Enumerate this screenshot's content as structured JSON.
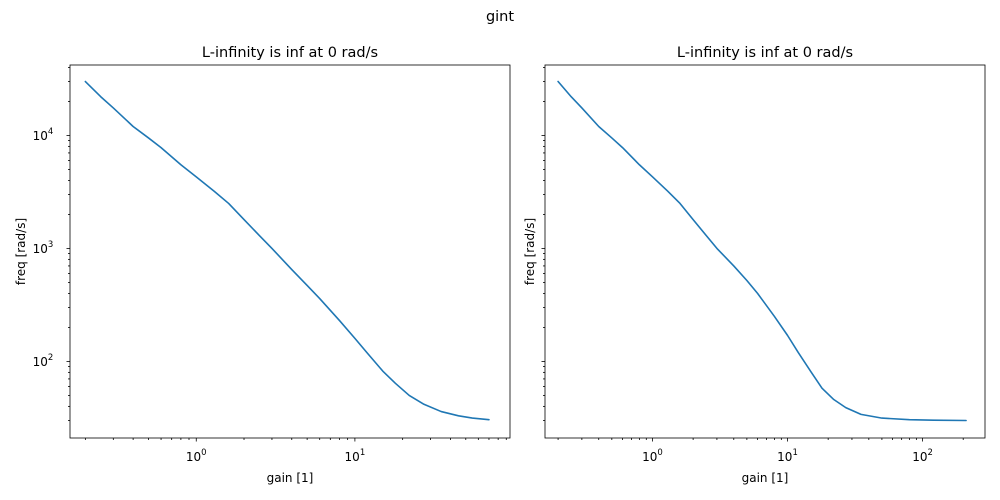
{
  "figure_title": "gint",
  "colors": {
    "series": "#1f77b4",
    "axes": "#000000",
    "background": "#ffffff"
  },
  "chart_data": [
    {
      "type": "line",
      "title": "L-infinity is inf at 0 rad/s",
      "xlabel": "gain [1]",
      "ylabel": "freq [rad/s]",
      "x_scale": "log",
      "y_scale": "log",
      "xlim": [
        0.16,
        95
      ],
      "ylim": [
        21,
        42000
      ],
      "x_ticks": [
        {
          "value": 1,
          "base": "10",
          "exp": "0"
        },
        {
          "value": 10,
          "base": "10",
          "exp": "1"
        }
      ],
      "y_ticks": [
        {
          "value": 100,
          "base": "10",
          "exp": "2"
        },
        {
          "value": 1000,
          "base": "10",
          "exp": "3"
        },
        {
          "value": 10000,
          "base": "10",
          "exp": "4"
        }
      ],
      "show_y_tick_labels": true,
      "grid": false,
      "series": [
        {
          "points": [
            [
              0.2,
              30000
            ],
            [
              0.25,
              22000
            ],
            [
              0.3,
              17500
            ],
            [
              0.4,
              12000
            ],
            [
              0.5,
              9500
            ],
            [
              0.6,
              7800
            ],
            [
              0.8,
              5500
            ],
            [
              1.0,
              4300
            ],
            [
              1.3,
              3200
            ],
            [
              1.6,
              2500
            ],
            [
              2.0,
              1800
            ],
            [
              2.5,
              1300
            ],
            [
              3.0,
              1000
            ],
            [
              4.0,
              650
            ],
            [
              5.0,
              470
            ],
            [
              6.0,
              360
            ],
            [
              8.0,
              230
            ],
            [
              10.0,
              160
            ],
            [
              12.0,
              118
            ],
            [
              15.0,
              82
            ],
            [
              18.0,
              64
            ],
            [
              22.0,
              50
            ],
            [
              27.0,
              42
            ],
            [
              35.0,
              36
            ],
            [
              45.0,
              33
            ],
            [
              55.0,
              31.5
            ],
            [
              70.0,
              30.5
            ]
          ]
        }
      ]
    },
    {
      "type": "line",
      "title": "L-infinity is inf at 0 rad/s",
      "xlabel": "gain [1]",
      "ylabel": "freq [rad/s]",
      "x_scale": "log",
      "y_scale": "log",
      "xlim": [
        0.16,
        290
      ],
      "ylim": [
        21,
        42000
      ],
      "x_ticks": [
        {
          "value": 1,
          "base": "10",
          "exp": "0"
        },
        {
          "value": 10,
          "base": "10",
          "exp": "1"
        },
        {
          "value": 100,
          "base": "10",
          "exp": "2"
        }
      ],
      "y_ticks": [
        {
          "value": 100,
          "base": "10",
          "exp": "2"
        },
        {
          "value": 1000,
          "base": "10",
          "exp": "3"
        },
        {
          "value": 10000,
          "base": "10",
          "exp": "4"
        }
      ],
      "show_y_tick_labels": false,
      "grid": false,
      "series": [
        {
          "points": [
            [
              0.2,
              30000
            ],
            [
              0.25,
              22000
            ],
            [
              0.3,
              17500
            ],
            [
              0.4,
              12000
            ],
            [
              0.5,
              9500
            ],
            [
              0.6,
              7800
            ],
            [
              0.8,
              5500
            ],
            [
              1.0,
              4300
            ],
            [
              1.3,
              3200
            ],
            [
              1.6,
              2500
            ],
            [
              2.0,
              1800
            ],
            [
              2.5,
              1300
            ],
            [
              3.0,
              1000
            ],
            [
              4.0,
              700
            ],
            [
              5.0,
              520
            ],
            [
              6.0,
              400
            ],
            [
              8.0,
              250
            ],
            [
              10.0,
              170
            ],
            [
              12.0,
              120
            ],
            [
              15.0,
              80
            ],
            [
              18.0,
              58
            ],
            [
              22.0,
              46
            ],
            [
              27.0,
              39
            ],
            [
              35.0,
              34
            ],
            [
              50.0,
              31.5
            ],
            [
              80.0,
              30.5
            ],
            [
              120.0,
              30.2
            ],
            [
              210.0,
              30
            ]
          ]
        }
      ]
    }
  ]
}
